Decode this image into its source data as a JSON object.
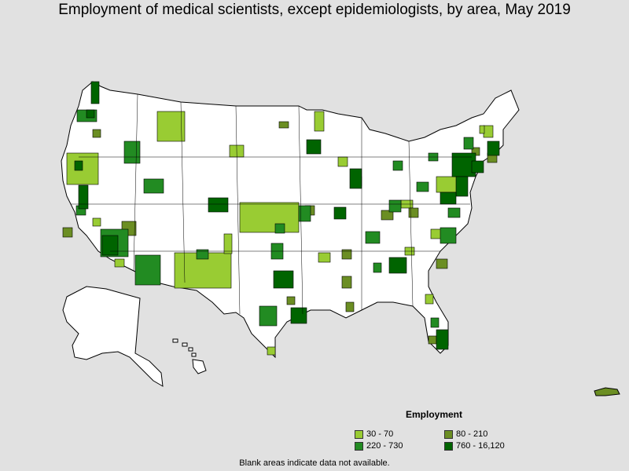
{
  "title": "Employment of medical scientists, except epidemiologists, by area, May 2019",
  "legend": {
    "title": "Employment",
    "items": [
      {
        "label": "30 - 70",
        "color": "#99cc33"
      },
      {
        "label": "80 - 210",
        "color": "#6b8e23"
      },
      {
        "label": "220 - 730",
        "color": "#228b22"
      },
      {
        "label": "760 - 16,120",
        "color": "#006400"
      }
    ]
  },
  "footnote": "Blank areas indicate data not available.",
  "colors": {
    "background": "#e1e1e1",
    "land": "#ffffff",
    "border": "#000000"
  }
}
